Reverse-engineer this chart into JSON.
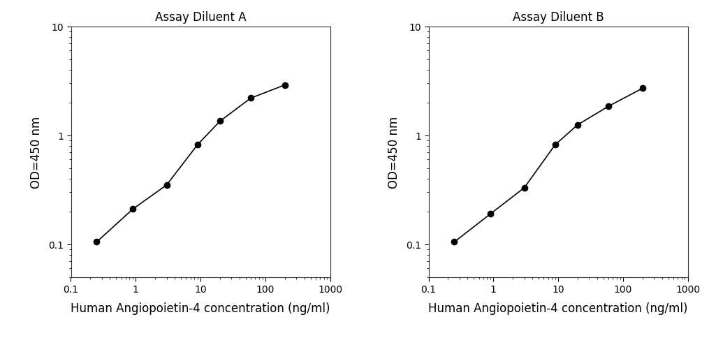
{
  "plot_A": {
    "title": "Assay Diluent A",
    "x": [
      0.25,
      0.9,
      3.0,
      9.0,
      20.0,
      60.0,
      200.0
    ],
    "y": [
      0.105,
      0.21,
      0.35,
      0.82,
      1.35,
      2.2,
      2.9
    ]
  },
  "plot_B": {
    "title": "Assay Diluent B",
    "x": [
      0.25,
      0.9,
      3.0,
      9.0,
      20.0,
      60.0,
      200.0
    ],
    "y": [
      0.105,
      0.19,
      0.33,
      0.82,
      1.25,
      1.85,
      2.7
    ]
  },
  "xlabel": "Human Angiopoietin-4 concentration (ng/ml)",
  "ylabel": "OD=450 nm",
  "xlim": [
    0.15,
    1000
  ],
  "ylim": [
    0.05,
    10
  ],
  "line_color": "#000000",
  "marker": "o",
  "marker_color": "#000000",
  "marker_size": 6,
  "title_fontsize": 12,
  "label_fontsize": 12,
  "tick_fontsize": 10,
  "background_color": "#ffffff"
}
